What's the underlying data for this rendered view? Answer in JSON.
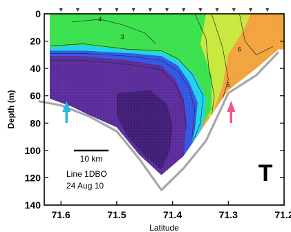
{
  "chart_data": {
    "type": "heatmap",
    "variable_label": "T",
    "xlabel": "Latitude",
    "ylabel": "Depth (m)",
    "x_reversed": true,
    "xlim": [
      71.63,
      71.2
    ],
    "ylim": [
      140,
      0
    ],
    "x_ticks": [
      71.6,
      71.5,
      71.4,
      71.3,
      71.2
    ],
    "x_tick_labels": [
      "71.6",
      "71.5",
      "71.4",
      "71.3",
      "71.2"
    ],
    "y_ticks": [
      0,
      20,
      40,
      60,
      80,
      100,
      120,
      140
    ],
    "y_tick_labels": [
      "0",
      "20",
      "40",
      "60",
      "80",
      "100",
      "120",
      "140"
    ],
    "station_latitudes": [
      71.6,
      71.57,
      71.53,
      71.5,
      71.47,
      71.44,
      71.41,
      71.38,
      71.35,
      71.32,
      71.29,
      71.26,
      71.23
    ],
    "bottom_depth_line": [
      {
        "x": 71.64,
        "y": 64
      },
      {
        "x": 71.6,
        "y": 67
      },
      {
        "x": 71.55,
        "y": 75
      },
      {
        "x": 71.5,
        "y": 86
      },
      {
        "x": 71.46,
        "y": 106
      },
      {
        "x": 71.42,
        "y": 129
      },
      {
        "x": 71.38,
        "y": 113
      },
      {
        "x": 71.34,
        "y": 93
      },
      {
        "x": 71.3,
        "y": 58
      },
      {
        "x": 71.25,
        "y": 45
      },
      {
        "x": 71.21,
        "y": 28
      }
    ],
    "section_bottom": [
      {
        "x": 71.62,
        "y": 62
      },
      {
        "x": 71.58,
        "y": 68
      },
      {
        "x": 71.55,
        "y": 74
      },
      {
        "x": 71.5,
        "y": 83
      },
      {
        "x": 71.46,
        "y": 103
      },
      {
        "x": 71.42,
        "y": 118
      },
      {
        "x": 71.38,
        "y": 104
      },
      {
        "x": 71.35,
        "y": 86
      },
      {
        "x": 71.3,
        "y": 56
      },
      {
        "x": 71.25,
        "y": 40
      },
      {
        "x": 71.21,
        "y": 26
      }
    ],
    "contour_labels": [
      {
        "text": "4",
        "x": 71.53,
        "y": 4
      },
      {
        "text": "3",
        "x": 71.49,
        "y": 17
      },
      {
        "text": "6",
        "x": 71.28,
        "y": 26
      },
      {
        "text": "5",
        "x": 71.3,
        "y": 52
      }
    ],
    "arrows": [
      {
        "x": 71.59,
        "color": "#29b6e8"
      },
      {
        "x": 71.295,
        "color": "#f2548c"
      }
    ],
    "scale_bar_label": "10 km",
    "annotation_lines": [
      "Line 1DBO",
      "24 Aug 10"
    ],
    "colors": {
      "deep_purple": "#3c1a74",
      "purple": "#58289a",
      "blue": "#2f54e6",
      "cyan": "#1ad3ee",
      "green": "#38e04a",
      "yellow_green": "#c7e83a",
      "orange": "#f2a23a",
      "bottom_line": "#a6a6a6"
    }
  }
}
